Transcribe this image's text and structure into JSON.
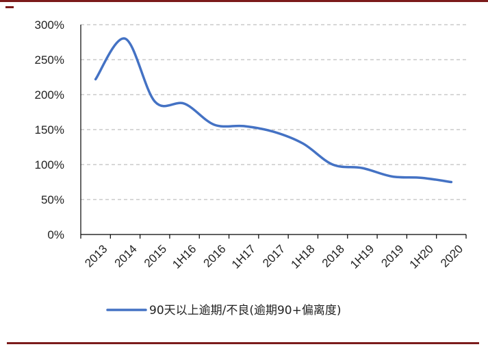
{
  "chart_data": {
    "type": "line",
    "categories": [
      "2013",
      "2014",
      "2015",
      "1H16",
      "2016",
      "1H17",
      "2017",
      "1H18",
      "2018",
      "1H19",
      "2019",
      "1H20",
      "2020"
    ],
    "series": [
      {
        "name": "90天以上逾期/不良(逾期90+偏离度)",
        "values": [
          222,
          280,
          190,
          187,
          157,
          155,
          147,
          130,
          100,
          95,
          83,
          81,
          75
        ],
        "color": "#4472c4"
      }
    ],
    "y_ticks": [
      "0%",
      "50%",
      "100%",
      "150%",
      "200%",
      "250%",
      "300%"
    ],
    "ylim": [
      0,
      300
    ],
    "y_unit": "%",
    "grid": "horizontal dashed",
    "legend_position": "bottom"
  }
}
